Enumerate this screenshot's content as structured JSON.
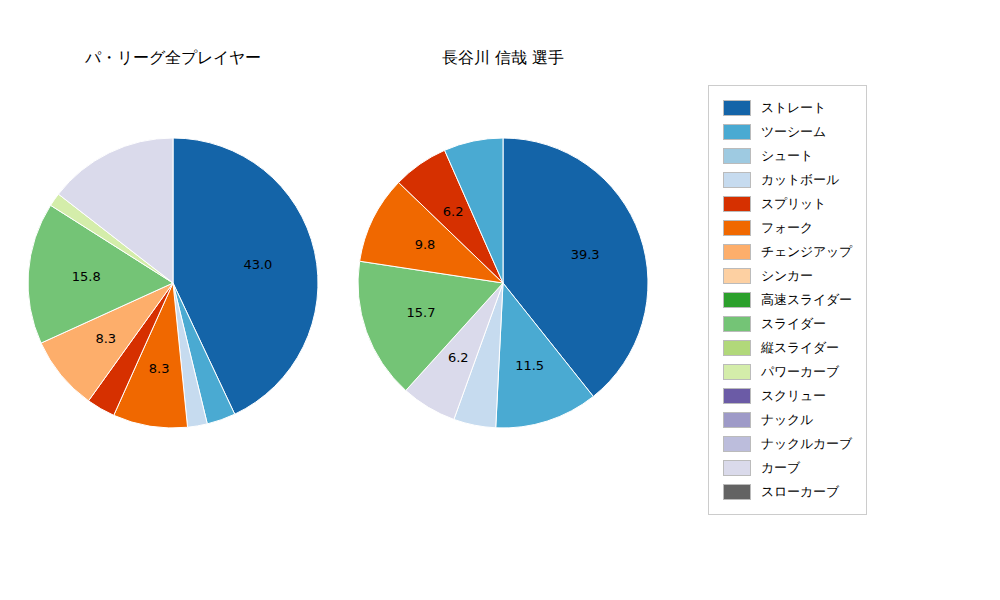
{
  "chart_data": [
    {
      "type": "pie",
      "title": "パ・リーグ全プレイヤー",
      "values": [
        43.0,
        3.2,
        2.2,
        8.3,
        3.2,
        8.3,
        15.8,
        1.5,
        14.5
      ],
      "colors": [
        "#1464a8",
        "#4aaad2",
        "#c6dbef",
        "#f06800",
        "#d63000",
        "#fdae6b",
        "#74c476",
        "#d4edaa",
        "#dadaeb"
      ],
      "value_labels": [
        "43.0",
        null,
        null,
        "8.3",
        null,
        "8.3",
        "15.8",
        null,
        null
      ],
      "data_labels": true
    },
    {
      "type": "pie",
      "title": "長谷川 信哉  選手",
      "values": [
        39.3,
        11.5,
        4.7,
        6.2,
        15.7,
        9.8,
        6.2,
        6.6
      ],
      "colors": [
        "#1464a8",
        "#4aaad2",
        "#c6dbef",
        "#dadaeb",
        "#74c476",
        "#f06800",
        "#d63000",
        "#4aaad2"
      ],
      "value_labels": [
        "39.3",
        "11.5",
        null,
        "6.2",
        "15.7",
        "9.8",
        "6.2",
        null
      ],
      "data_labels": true
    }
  ],
  "legend_entries": [
    {
      "name": "ストレート",
      "color": "#1464a8"
    },
    {
      "name": "ツーシーム",
      "color": "#4aaad2"
    },
    {
      "name": "シュート",
      "color": "#9ecae1"
    },
    {
      "name": "カットボール",
      "color": "#c6dbef"
    },
    {
      "name": "スプリット",
      "color": "#d63000"
    },
    {
      "name": "フォーク",
      "color": "#f06800"
    },
    {
      "name": "チェンジアップ",
      "color": "#fdae6b"
    },
    {
      "name": "シンカー",
      "color": "#fdd0a2"
    },
    {
      "name": "高速スライダー",
      "color": "#2ca02c"
    },
    {
      "name": "スライダー",
      "color": "#74c476"
    },
    {
      "name": "縦スライダー",
      "color": "#b1d87a"
    },
    {
      "name": "パワーカーブ",
      "color": "#d4edaa"
    },
    {
      "name": "スクリュー",
      "color": "#6b5ba6"
    },
    {
      "name": "ナックル",
      "color": "#9e9ac8"
    },
    {
      "name": "ナックルカーブ",
      "color": "#bcbddc"
    },
    {
      "name": "カーブ",
      "color": "#dadaeb"
    },
    {
      "name": "スローカーブ",
      "color": "#636363"
    }
  ]
}
